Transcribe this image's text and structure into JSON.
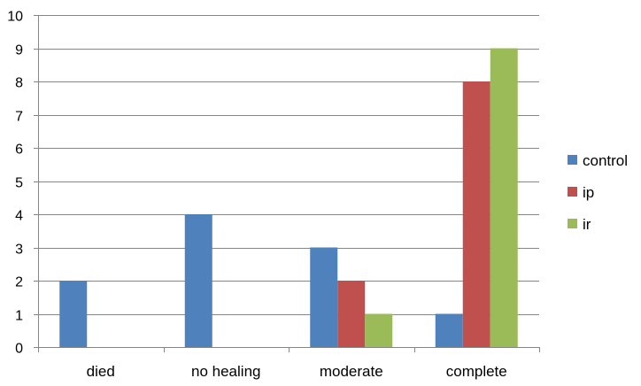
{
  "chart_data": {
    "type": "bar",
    "title": "",
    "xlabel": "",
    "ylabel": "",
    "categories": [
      "died",
      "no healing",
      "moderate",
      "complete"
    ],
    "series": [
      {
        "name": "control",
        "values": [
          2,
          4,
          3,
          1
        ],
        "color": "#4F81BD"
      },
      {
        "name": "ip",
        "values": [
          0,
          0,
          2,
          8
        ],
        "color": "#C0504D"
      },
      {
        "name": "ir",
        "values": [
          0,
          0,
          1,
          9
        ],
        "color": "#9BBB59"
      }
    ],
    "ylim": [
      0,
      10
    ],
    "yticks": [
      0,
      1,
      2,
      3,
      4,
      5,
      6,
      7,
      8,
      9,
      10
    ],
    "grid": true,
    "legend_position": "right"
  }
}
